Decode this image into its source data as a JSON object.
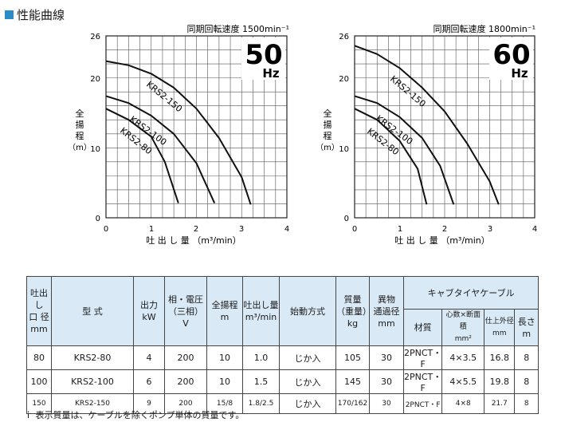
{
  "page": {
    "heading": "性能曲線",
    "accent_color": "#2a8cc8",
    "footnote": "ｉ 表示質量は、ケーブルを除くポンプ単体の質量です。"
  },
  "charts": {
    "y_axis_label": [
      "全",
      "揚",
      "程",
      "（m）"
    ],
    "x_axis_label": "吐 出 し 量 （m³/min）",
    "left": {
      "speed": "同期回転速度 1500min⁻¹",
      "hz_number": "50",
      "hz_unit": "Hz",
      "curve_labels": [
        "KRS2-150",
        "KRS2-100",
        "KRS2-80"
      ]
    },
    "right": {
      "speed": "同期回転速度 1800min⁻¹",
      "hz_number": "60",
      "hz_unit": "Hz",
      "curve_labels": [
        "KRS2-150",
        "KRS2-100",
        "KRS2-80"
      ]
    }
  },
  "chart_data": [
    {
      "type": "line",
      "xlabel": "吐出し量（m³/min）",
      "ylabel": "全揚程（m）",
      "xlim": [
        0,
        4
      ],
      "ylim": [
        0,
        26
      ],
      "x_ticks": [
        "0",
        "1",
        "2",
        "3",
        "4"
      ],
      "y_ticks": [
        "26",
        "20",
        "10",
        "0"
      ],
      "grid": true,
      "series": [
        {
          "name": "KRS2-150",
          "points": [
            [
              0,
              22.4
            ],
            [
              0.5,
              21.8
            ],
            [
              1.0,
              20.6
            ],
            [
              1.5,
              18.6
            ],
            [
              2.0,
              15.6
            ],
            [
              2.5,
              11.4
            ],
            [
              3.0,
              5.8
            ],
            [
              3.2,
              1.9
            ]
          ]
        },
        {
          "name": "KRS2-100",
          "points": [
            [
              0,
              17.4
            ],
            [
              0.5,
              16.4
            ],
            [
              1.0,
              14.6
            ],
            [
              1.5,
              12.0
            ],
            [
              2.0,
              7.8
            ],
            [
              2.4,
              2.1
            ]
          ]
        },
        {
          "name": "KRS2-80",
          "points": [
            [
              0,
              15.6
            ],
            [
              0.5,
              14.0
            ],
            [
              1.0,
              11.6
            ],
            [
              1.3,
              8.0
            ],
            [
              1.6,
              2.1
            ]
          ]
        }
      ]
    },
    {
      "type": "line",
      "xlabel": "吐出し量（m³/min）",
      "ylabel": "全揚程（m）",
      "xlim": [
        0,
        4
      ],
      "ylim": [
        0,
        26
      ],
      "x_ticks": [
        "0",
        "1",
        "2",
        "3",
        "4"
      ],
      "y_ticks": [
        "26",
        "20",
        "10",
        "0"
      ],
      "grid": true,
      "series": [
        {
          "name": "KRS2-150",
          "points": [
            [
              0,
              24.6
            ],
            [
              0.5,
              23.4
            ],
            [
              1.0,
              21.4
            ],
            [
              1.5,
              18.6
            ],
            [
              2.0,
              15.2
            ],
            [
              2.5,
              10.6
            ],
            [
              3.0,
              5.2
            ],
            [
              3.2,
              1.9
            ]
          ]
        },
        {
          "name": "KRS2-100",
          "points": [
            [
              0,
              17.4
            ],
            [
              0.5,
              16.4
            ],
            [
              1.0,
              14.4
            ],
            [
              1.5,
              11.4
            ],
            [
              1.9,
              7.4
            ],
            [
              2.2,
              1.9
            ]
          ]
        },
        {
          "name": "KRS2-80",
          "points": [
            [
              0,
              15.6
            ],
            [
              0.5,
              14.0
            ],
            [
              1.0,
              11.0
            ],
            [
              1.4,
              7.0
            ],
            [
              1.6,
              1.9
            ]
          ]
        }
      ]
    }
  ],
  "spec_table": {
    "headers": {
      "outlet": [
        "吐出し",
        "口 径",
        "mm"
      ],
      "model": "型 式",
      "output": [
        "出力",
        "kW"
      ],
      "phase_voltage": [
        "相・電圧",
        "（三相）",
        "V"
      ],
      "head": [
        "全揚程",
        "m"
      ],
      "discharge": [
        "吐出し量",
        "m³/min"
      ],
      "start_method": "始動方式",
      "mass": [
        "質量",
        "（重量）",
        "kg"
      ],
      "foreign_passage": [
        "異物",
        "通過径",
        "mm"
      ],
      "cable": "キャブタイヤケーブル",
      "cable_material": "材質",
      "cable_cores": [
        "心数×断面積",
        "mm²"
      ],
      "cable_od": [
        "仕上外径",
        "mm"
      ],
      "cable_length": [
        "長さ",
        "m"
      ]
    },
    "rows": [
      {
        "outlet": "80",
        "model": "KRS2-80",
        "output": "4",
        "voltage": "200",
        "head": "10",
        "discharge": "1.0",
        "start": "じか入",
        "mass": "105",
        "passage": "30",
        "material": "2PNCT・F",
        "cores": "4×3.5",
        "od": "16.8",
        "length": "8"
      },
      {
        "outlet": "100",
        "model": "KRS2-100",
        "output": "6",
        "voltage": "200",
        "head": "10",
        "discharge": "1.5",
        "start": "じか入",
        "mass": "145",
        "passage": "30",
        "material": "2PNCT・F",
        "cores": "4×5.5",
        "od": "19.8",
        "length": "8"
      },
      {
        "outlet": "150",
        "model": "KRS2-150",
        "output": "9",
        "voltage": "200",
        "head": "15/8",
        "discharge": "1.8/2.5",
        "start": "じか入",
        "mass": "170/162",
        "passage": "30",
        "material": "2PNCT・F",
        "cores": "4×8",
        "od": "21.7",
        "length": "8"
      }
    ]
  }
}
